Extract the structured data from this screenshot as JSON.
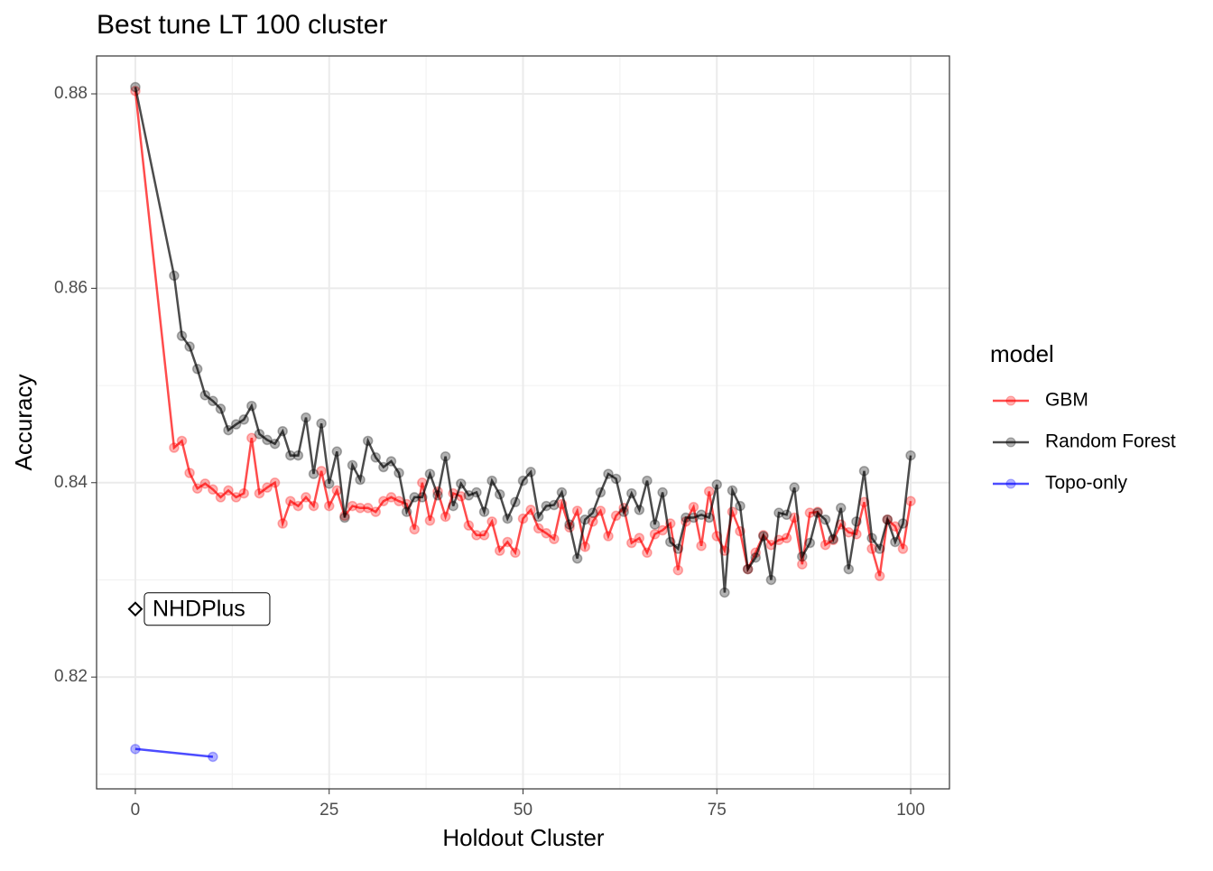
{
  "chart_data": {
    "type": "line",
    "title": "Best tune LT 100 cluster",
    "x_label": "Holdout Cluster",
    "y_label": "Accuracy",
    "xlim": [
      -5,
      105
    ],
    "ylim": [
      0.8085,
      0.8839
    ],
    "xticks": [
      0,
      25,
      50,
      75,
      100
    ],
    "yticks": [
      0.82,
      0.84,
      0.86,
      0.88
    ],
    "xminorticks": [
      12.5,
      37.5,
      62.5,
      87.5
    ],
    "yminorticks": [
      0.81,
      0.83,
      0.85,
      0.87
    ],
    "grid": true,
    "legend_title": "model",
    "legend_position": "right",
    "series": [
      {
        "name": "GBM",
        "color": "#ff0000",
        "x": [
          0,
          5,
          6,
          7,
          8,
          9,
          10,
          11,
          12,
          13,
          14,
          15,
          16,
          17,
          18,
          19,
          20,
          21,
          22,
          23,
          24,
          25,
          26,
          27,
          28,
          29,
          30,
          31,
          32,
          33,
          34,
          35,
          36,
          37,
          38,
          39,
          40,
          41,
          42,
          43,
          44,
          45,
          46,
          47,
          48,
          49,
          50,
          51,
          52,
          53,
          54,
          55,
          56,
          57,
          58,
          59,
          60,
          61,
          62,
          63,
          64,
          65,
          66,
          67,
          68,
          69,
          70,
          71,
          72,
          73,
          74,
          75,
          76,
          77,
          78,
          79,
          80,
          81,
          82,
          83,
          84,
          85,
          86,
          87,
          88,
          89,
          90,
          91,
          92,
          93,
          94,
          95,
          96,
          97,
          98,
          99,
          100
        ],
        "values": [
          0.8803,
          0.8436,
          0.8443,
          0.841,
          0.8394,
          0.8399,
          0.8393,
          0.8385,
          0.8392,
          0.8385,
          0.8389,
          0.8446,
          0.8389,
          0.8395,
          0.84,
          0.8358,
          0.8381,
          0.8376,
          0.8385,
          0.8376,
          0.8412,
          0.8376,
          0.8392,
          0.8366,
          0.8376,
          0.8374,
          0.8374,
          0.837,
          0.8381,
          0.8385,
          0.8381,
          0.8378,
          0.8352,
          0.84,
          0.8361,
          0.8391,
          0.8365,
          0.8389,
          0.8386,
          0.8356,
          0.8346,
          0.8346,
          0.836,
          0.833,
          0.8339,
          0.8328,
          0.8363,
          0.8372,
          0.8353,
          0.8348,
          0.8342,
          0.8378,
          0.8354,
          0.8371,
          0.8334,
          0.836,
          0.8371,
          0.8345,
          0.8366,
          0.8374,
          0.8338,
          0.8343,
          0.8328,
          0.8347,
          0.8351,
          0.8358,
          0.831,
          0.836,
          0.8375,
          0.8335,
          0.8391,
          0.8345,
          0.833,
          0.837,
          0.835,
          0.8311,
          0.8328,
          0.8346,
          0.8336,
          0.8341,
          0.8343,
          0.8364,
          0.8316,
          0.8369,
          0.837,
          0.8336,
          0.8341,
          0.8357,
          0.8349,
          0.8347,
          0.838,
          0.8332,
          0.8304,
          0.8362,
          0.8355,
          0.8332,
          0.8381
        ]
      },
      {
        "name": "Random Forest",
        "color": "#000000",
        "x": [
          0,
          5,
          6,
          7,
          8,
          9,
          10,
          11,
          12,
          13,
          14,
          15,
          16,
          17,
          18,
          19,
          20,
          21,
          22,
          23,
          24,
          25,
          26,
          27,
          28,
          29,
          30,
          31,
          32,
          33,
          34,
          35,
          36,
          37,
          38,
          39,
          40,
          41,
          42,
          43,
          44,
          45,
          46,
          47,
          48,
          49,
          50,
          51,
          52,
          53,
          54,
          55,
          56,
          57,
          58,
          59,
          60,
          61,
          62,
          63,
          64,
          65,
          66,
          67,
          68,
          69,
          70,
          71,
          72,
          73,
          74,
          75,
          76,
          77,
          78,
          79,
          80,
          81,
          82,
          83,
          84,
          85,
          86,
          87,
          88,
          89,
          90,
          91,
          92,
          93,
          94,
          95,
          96,
          97,
          98,
          99,
          100
        ],
        "values": [
          0.8807,
          0.8613,
          0.8551,
          0.854,
          0.8517,
          0.849,
          0.8484,
          0.8476,
          0.8454,
          0.846,
          0.8465,
          0.8479,
          0.845,
          0.8444,
          0.844,
          0.8453,
          0.8428,
          0.8428,
          0.8467,
          0.8409,
          0.8461,
          0.8399,
          0.8432,
          0.8364,
          0.8418,
          0.8403,
          0.8443,
          0.8426,
          0.8416,
          0.8422,
          0.841,
          0.837,
          0.8385,
          0.8385,
          0.8409,
          0.8387,
          0.8427,
          0.8376,
          0.8399,
          0.8387,
          0.839,
          0.837,
          0.8402,
          0.8388,
          0.8363,
          0.838,
          0.8402,
          0.8411,
          0.8365,
          0.8376,
          0.8377,
          0.839,
          0.8357,
          0.8322,
          0.8362,
          0.8369,
          0.839,
          0.8409,
          0.8404,
          0.837,
          0.8389,
          0.8372,
          0.8402,
          0.8357,
          0.839,
          0.8339,
          0.8332,
          0.8364,
          0.8364,
          0.8367,
          0.8364,
          0.8398,
          0.8287,
          0.8392,
          0.8376,
          0.8311,
          0.8323,
          0.8345,
          0.83,
          0.8369,
          0.8367,
          0.8395,
          0.8324,
          0.8338,
          0.8369,
          0.8362,
          0.8342,
          0.8374,
          0.8311,
          0.836,
          0.8412,
          0.8343,
          0.8332,
          0.8362,
          0.8339,
          0.8358,
          0.8428
        ]
      },
      {
        "name": "Topo-only",
        "color": "#0000ff",
        "x": [
          0,
          10
        ],
        "values": [
          0.8126,
          0.8118
        ]
      }
    ],
    "annotations": [
      {
        "text": "NHDPlus",
        "x": 0,
        "y": 0.827
      }
    ]
  }
}
